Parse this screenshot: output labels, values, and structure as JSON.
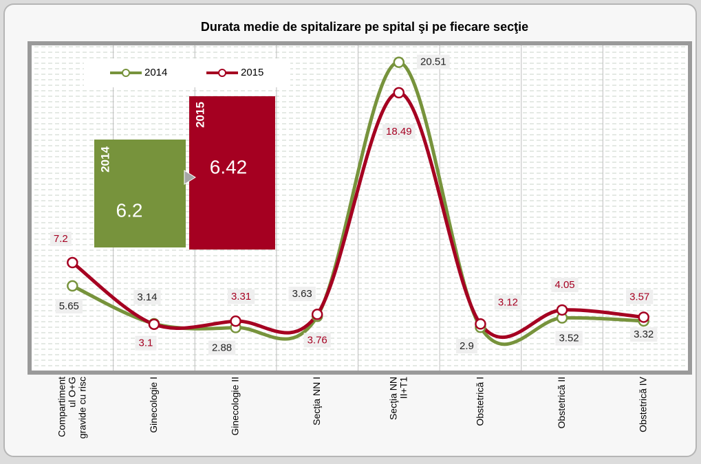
{
  "chart_data": {
    "type": "line",
    "title": "Durata medie de spitalizare pe spital şi pe fiecare secţie",
    "categories": [
      "Compartiment\nul O+G\ngravide cu risc",
      "Ginecologie I",
      "Ginecologie II",
      "Secţia NN I",
      "Secţia NN\nII+T1",
      "Obstetrică I",
      "Obstetrică II",
      "Obstetrică IV"
    ],
    "series": [
      {
        "name": "2014",
        "color": "#77933c",
        "values": [
          5.65,
          3.14,
          2.88,
          3.63,
          20.51,
          2.9,
          3.52,
          3.32
        ]
      },
      {
        "name": "2015",
        "color": "#a50021",
        "values": [
          7.2,
          3.1,
          3.31,
          3.76,
          18.49,
          3.12,
          4.05,
          3.57
        ]
      }
    ],
    "ylim": [
      0,
      21.5
    ],
    "grid": true,
    "legend": "top-left",
    "callouts": [
      {
        "year": "2014",
        "value": 6.2
      },
      {
        "year": "2015",
        "value": 6.42
      }
    ]
  }
}
